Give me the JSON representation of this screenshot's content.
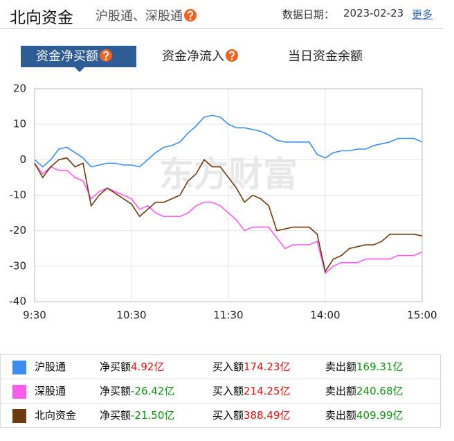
{
  "header": {
    "title": "北向资金",
    "subtitle": "沪股通、深股通",
    "date_label": "数据日期：",
    "date": "2023-02-23",
    "more": "更多"
  },
  "tabs": [
    "资金净买额",
    "资金净流入",
    "当日资金余额"
  ],
  "chart_data": {
    "type": "line",
    "watermark": "东方财富",
    "categories": [
      "9:30",
      null,
      null,
      null,
      null,
      null,
      null,
      null,
      null,
      null,
      null,
      null,
      "10:30",
      null,
      null,
      null,
      null,
      null,
      null,
      null,
      null,
      null,
      null,
      null,
      "11:30",
      null,
      null,
      null,
      null,
      null,
      null,
      null,
      null,
      null,
      null,
      null,
      "14:00",
      null,
      null,
      null,
      null,
      null,
      null,
      null,
      null,
      null,
      null,
      null,
      "15:00"
    ],
    "series": [
      {
        "name": "沪股通",
        "color": "#3b8ef0",
        "values": [
          0,
          -2,
          0,
          3,
          3.5,
          2,
          0.5,
          -2,
          -1.5,
          -1,
          -1,
          -1.5,
          -1.5,
          -2,
          0,
          2,
          3.5,
          4,
          5,
          7.5,
          9.5,
          12,
          12.5,
          12,
          10,
          9,
          9,
          8.5,
          8,
          7,
          5.5,
          5,
          5,
          5,
          5,
          1.5,
          0.5,
          2,
          2.5,
          2.5,
          3,
          3,
          4,
          4.5,
          5,
          6,
          6,
          6,
          5
        ]
      },
      {
        "name": "深股通",
        "color": "#ff5af0",
        "values": [
          -1,
          -4,
          -2,
          -3,
          -3,
          -5,
          -6,
          -11,
          -9,
          -8,
          -9,
          -10,
          -11,
          -14,
          -13,
          -15,
          -16,
          -16,
          -16,
          -15,
          -13,
          -12,
          -12,
          -13,
          -15,
          -17,
          -20,
          -19,
          -19,
          -19,
          -22,
          -25,
          -24,
          -24,
          -24,
          -23,
          -32,
          -30,
          -29,
          -29,
          -29,
          -28,
          -28,
          -28,
          -28,
          -27,
          -27,
          -27,
          -26
        ]
      },
      {
        "name": "北向资金",
        "color": "#6b3a0e",
        "values": [
          -1,
          -5,
          -2,
          0,
          0.5,
          -2,
          -1,
          -13,
          -10,
          -8,
          -9.5,
          -11,
          -12.5,
          -16,
          -14,
          -12,
          -12,
          -11,
          -10,
          -6,
          -4,
          0,
          -2,
          -2,
          -5,
          -8,
          -12,
          -10,
          -11,
          -13,
          -20,
          -19.5,
          -19,
          -19,
          -19,
          -21,
          -31.5,
          -28,
          -27,
          -25,
          -24.5,
          -24,
          -24,
          -23,
          -21,
          -21,
          -21,
          -21,
          -21.5
        ]
      }
    ],
    "ylim": [
      -40,
      20
    ],
    "yticks": [
      -40,
      -30,
      -20,
      -10,
      0,
      10,
      20
    ],
    "grid": true
  },
  "table": {
    "rows": [
      {
        "name": "沪股通",
        "net_label": "净买额",
        "net": "4.92亿",
        "buy_label": "买入额",
        "buy": "174.23亿",
        "sell_label": "卖出额",
        "sell": "169.31亿"
      },
      {
        "name": "深股通",
        "net_label": "净买额",
        "net": "-26.42亿",
        "buy_label": "买入额",
        "buy": "214.25亿",
        "sell_label": "卖出额",
        "sell": "240.68亿"
      },
      {
        "name": "北向资金",
        "net_label": "净买额",
        "net": "-21.50亿",
        "buy_label": "买入额",
        "buy": "388.49亿",
        "sell_label": "卖出额",
        "sell": "409.99亿"
      }
    ]
  }
}
